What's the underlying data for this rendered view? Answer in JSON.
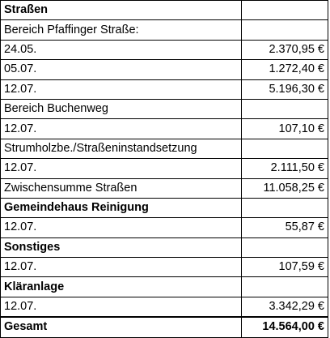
{
  "rows": [
    {
      "label": "Straßen",
      "amount": "",
      "bold": true
    },
    {
      "label": "Bereich Pfaffinger Straße:",
      "amount": "",
      "bold": false
    },
    {
      "label": "24.05.",
      "amount": "2.370,95 €",
      "bold": false
    },
    {
      "label": "05.07.",
      "amount": "1.272,40 €",
      "bold": false
    },
    {
      "label": "12.07.",
      "amount": "5.196,30 €",
      "bold": false
    },
    {
      "label": "Bereich Buchenweg",
      "amount": "",
      "bold": false
    },
    {
      "label": "12.07.",
      "amount": "107,10 €",
      "bold": false
    },
    {
      "label": "Strumholzbe./Straßeninstandsetzung",
      "amount": "",
      "bold": false
    },
    {
      "label": "12.07.",
      "amount": "2.111,50 €",
      "bold": false
    },
    {
      "label": "Zwischensumme Straßen",
      "amount": "11.058,25 €",
      "bold": false
    },
    {
      "label": "Gemeindehaus Reinigung",
      "amount": "",
      "bold": true
    },
    {
      "label": "12.07.",
      "amount": "55,87 €",
      "bold": false
    },
    {
      "label": "Sonstiges",
      "amount": "",
      "bold": true
    },
    {
      "label": "12.07.",
      "amount": "107,59 €",
      "bold": false
    },
    {
      "label": "Kläranlage",
      "amount": "",
      "bold": true
    },
    {
      "label": "12.07.",
      "amount": "3.342,29 €",
      "bold": false
    },
    {
      "label": "Gesamt",
      "amount": "14.564,00 €",
      "bold": true
    }
  ]
}
